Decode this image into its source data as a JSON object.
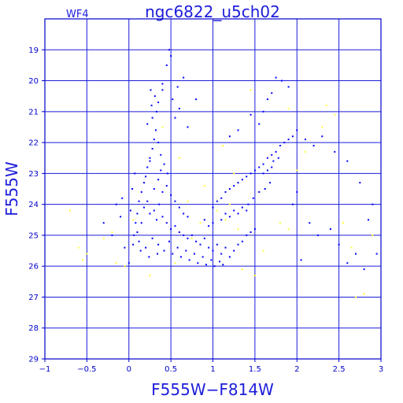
{
  "colors": {
    "axes": "#0000cc",
    "grid": "#1d1ddb",
    "series_main": "#0000ff",
    "series_minor": "#ffff33",
    "background": "#ffffff"
  },
  "chart_data": {
    "type": "scatter",
    "title": "ngc6822_u5ch02",
    "subtitle": "WF4",
    "xlabel": "F555W−F814W",
    "ylabel": "F555W",
    "xlim": [
      -1,
      3
    ],
    "ylim": [
      29,
      18
    ],
    "y_inverted": true,
    "grid": true,
    "x_ticks": [
      -1,
      -0.5,
      0,
      0.5,
      1,
      1.5,
      2,
      2.5,
      3
    ],
    "x_tick_labels": [
      "−1",
      "−0.5",
      "0",
      "0.5",
      "1",
      "1.5",
      "2",
      "2.5",
      "3"
    ],
    "y_ticks": [
      19,
      20,
      21,
      22,
      23,
      24,
      25,
      26,
      27,
      28,
      29
    ],
    "y_tick_labels": [
      "19",
      "20",
      "21",
      "22",
      "23",
      "24",
      "25",
      "26",
      "27",
      "28",
      "29"
    ],
    "series": [
      {
        "color": "#0000ff",
        "points": [
          [
            0.15,
            24.6
          ],
          [
            0.18,
            24.1
          ],
          [
            0.22,
            23.9
          ],
          [
            0.25,
            24.3
          ],
          [
            0.3,
            24.2
          ],
          [
            0.33,
            24.5
          ],
          [
            0.36,
            24.0
          ],
          [
            0.4,
            24.4
          ],
          [
            0.45,
            24.6
          ],
          [
            0.5,
            24.8
          ],
          [
            0.55,
            24.7
          ],
          [
            0.6,
            24.9
          ],
          [
            0.65,
            25.0
          ],
          [
            0.7,
            25.1
          ],
          [
            0.75,
            25.0
          ],
          [
            0.8,
            25.2
          ],
          [
            0.85,
            25.3
          ],
          [
            0.9,
            25.1
          ],
          [
            0.95,
            25.4
          ],
          [
            1.0,
            25.5
          ],
          [
            1.05,
            25.3
          ],
          [
            1.1,
            25.6
          ],
          [
            1.15,
            25.4
          ],
          [
            1.2,
            25.7
          ],
          [
            1.25,
            25.5
          ],
          [
            1.3,
            25.3
          ],
          [
            1.35,
            25.2
          ],
          [
            1.4,
            25.0
          ],
          [
            1.45,
            24.9
          ],
          [
            1.5,
            24.8
          ],
          [
            0.1,
            24.9
          ],
          [
            0.12,
            25.2
          ],
          [
            0.2,
            25.4
          ],
          [
            0.28,
            25.1
          ],
          [
            0.35,
            25.3
          ],
          [
            0.42,
            25.5
          ],
          [
            0.48,
            25.2
          ],
          [
            0.52,
            25.6
          ],
          [
            0.58,
            25.4
          ],
          [
            0.62,
            25.7
          ],
          [
            0.68,
            25.5
          ],
          [
            0.72,
            25.8
          ],
          [
            0.78,
            25.6
          ],
          [
            0.82,
            25.9
          ],
          [
            0.88,
            25.7
          ],
          [
            0.92,
            25.95
          ],
          [
            0.98,
            25.8
          ],
          [
            1.02,
            26.0
          ],
          [
            1.08,
            25.85
          ],
          [
            1.12,
            25.95
          ],
          [
            0.3,
            23.5
          ],
          [
            0.35,
            23.2
          ],
          [
            0.38,
            22.9
          ],
          [
            0.4,
            23.6
          ],
          [
            0.45,
            23.4
          ],
          [
            0.5,
            23.7
          ],
          [
            0.55,
            23.9
          ],
          [
            0.6,
            24.1
          ],
          [
            0.65,
            24.3
          ],
          [
            0.7,
            24.4
          ],
          [
            0.2,
            23.1
          ],
          [
            0.22,
            22.8
          ],
          [
            0.25,
            22.5
          ],
          [
            0.28,
            22.2
          ],
          [
            0.3,
            21.9
          ],
          [
            0.32,
            21.6
          ],
          [
            0.35,
            22.0
          ],
          [
            0.38,
            22.4
          ],
          [
            0.42,
            22.7
          ],
          [
            0.46,
            23.0
          ],
          [
            0.18,
            23.3
          ],
          [
            0.15,
            23.6
          ],
          [
            0.12,
            23.9
          ],
          [
            0.1,
            24.3
          ],
          [
            0.08,
            24.6
          ],
          [
            0.06,
            25.0
          ],
          [
            0.05,
            25.3
          ],
          [
            0.14,
            25.5
          ],
          [
            0.24,
            25.7
          ],
          [
            0.34,
            25.6
          ],
          [
            1.0,
            24.1
          ],
          [
            1.05,
            23.9
          ],
          [
            1.1,
            23.8
          ],
          [
            1.15,
            23.6
          ],
          [
            1.2,
            23.5
          ],
          [
            1.25,
            23.4
          ],
          [
            1.3,
            23.3
          ],
          [
            1.35,
            23.2
          ],
          [
            1.4,
            23.1
          ],
          [
            1.45,
            23.0
          ],
          [
            1.5,
            22.9
          ],
          [
            1.55,
            22.8
          ],
          [
            1.6,
            22.7
          ],
          [
            1.65,
            22.5
          ],
          [
            1.7,
            22.4
          ],
          [
            1.75,
            22.3
          ],
          [
            1.8,
            22.1
          ],
          [
            1.85,
            22.0
          ],
          [
            1.9,
            21.9
          ],
          [
            1.95,
            21.8
          ],
          [
            1.1,
            24.5
          ],
          [
            1.15,
            24.3
          ],
          [
            1.2,
            24.4
          ],
          [
            1.25,
            24.2
          ],
          [
            1.3,
            24.3
          ],
          [
            1.35,
            24.1
          ],
          [
            1.4,
            24.2
          ],
          [
            1.0,
            24.6
          ],
          [
            0.95,
            24.7
          ],
          [
            0.9,
            24.5
          ],
          [
            1.6,
            23.0
          ],
          [
            1.65,
            22.9
          ],
          [
            1.7,
            22.8
          ],
          [
            1.72,
            22.6
          ],
          [
            1.78,
            22.5
          ],
          [
            1.68,
            23.3
          ],
          [
            1.62,
            23.5
          ],
          [
            1.55,
            23.6
          ],
          [
            1.48,
            23.8
          ],
          [
            1.42,
            24.0
          ],
          [
            0.6,
            20.9
          ],
          [
            0.55,
            21.2
          ],
          [
            0.7,
            21.5
          ],
          [
            0.8,
            20.6
          ],
          [
            0.45,
            19.5
          ],
          [
            0.5,
            19.2
          ],
          [
            0.48,
            19.0
          ],
          [
            0.65,
            19.9
          ],
          [
            0.4,
            20.3
          ],
          [
            0.35,
            20.7
          ],
          [
            1.6,
            21.0
          ],
          [
            1.7,
            20.4
          ],
          [
            1.75,
            19.9
          ],
          [
            1.82,
            20.0
          ],
          [
            1.9,
            20.2
          ],
          [
            1.65,
            20.6
          ],
          [
            1.55,
            21.4
          ],
          [
            1.45,
            21.1
          ],
          [
            1.3,
            21.6
          ],
          [
            1.2,
            21.8
          ],
          [
            2.0,
            21.6
          ],
          [
            2.1,
            21.9
          ],
          [
            2.2,
            22.1
          ],
          [
            2.3,
            21.8
          ],
          [
            2.45,
            22.3
          ],
          [
            2.6,
            22.6
          ],
          [
            2.75,
            23.3
          ],
          [
            2.85,
            24.5
          ],
          [
            2.9,
            24.0
          ],
          [
            2.95,
            25.6
          ],
          [
            2.4,
            24.8
          ],
          [
            2.5,
            25.3
          ],
          [
            2.6,
            25.9
          ],
          [
            2.7,
            25.6
          ],
          [
            2.8,
            26.1
          ],
          [
            2.15,
            24.6
          ],
          [
            2.25,
            25.0
          ],
          [
            2.05,
            25.8
          ],
          [
            1.95,
            24.0
          ],
          [
            2.0,
            23.6
          ],
          [
            -0.3,
            24.6
          ],
          [
            -0.2,
            25.0
          ],
          [
            -0.1,
            24.4
          ],
          [
            -0.05,
            25.4
          ],
          [
            0.0,
            25.9
          ],
          [
            -0.15,
            24.0
          ],
          [
            0.02,
            24.2
          ],
          [
            -0.08,
            23.8
          ],
          [
            0.04,
            23.5
          ],
          [
            0.07,
            23.0
          ],
          [
            0.25,
            22.6
          ],
          [
            0.28,
            21.2
          ],
          [
            0.22,
            21.4
          ],
          [
            0.27,
            20.8
          ],
          [
            0.31,
            20.5
          ],
          [
            0.33,
            21.0
          ],
          [
            0.26,
            20.3
          ],
          [
            0.4,
            20.1
          ],
          [
            0.52,
            20.6
          ],
          [
            0.58,
            20.2
          ]
        ]
      },
      {
        "color": "#ffff33",
        "points": [
          [
            -0.7,
            24.2
          ],
          [
            -0.6,
            25.4
          ],
          [
            -0.55,
            25.8
          ],
          [
            -0.5,
            25.6
          ],
          [
            -0.3,
            25.1
          ],
          [
            -0.2,
            24.9
          ],
          [
            -0.15,
            25.9
          ],
          [
            -0.05,
            26.0
          ],
          [
            0.05,
            24.5
          ],
          [
            0.25,
            26.3
          ],
          [
            0.55,
            25.9
          ],
          [
            0.75,
            25.1
          ],
          [
            0.85,
            24.6
          ],
          [
            1.05,
            24.2
          ],
          [
            1.15,
            24.5
          ],
          [
            1.2,
            24.0
          ],
          [
            1.3,
            24.8
          ],
          [
            1.35,
            26.1
          ],
          [
            1.5,
            26.3
          ],
          [
            1.6,
            25.5
          ],
          [
            1.8,
            24.6
          ],
          [
            1.9,
            24.8
          ],
          [
            2.0,
            22.9
          ],
          [
            2.1,
            22.3
          ],
          [
            2.3,
            21.5
          ],
          [
            2.35,
            20.8
          ],
          [
            2.45,
            21.1
          ],
          [
            2.55,
            24.6
          ],
          [
            2.65,
            25.4
          ],
          [
            2.7,
            27.0
          ],
          [
            2.8,
            26.9
          ],
          [
            2.9,
            25.0
          ],
          [
            0.4,
            21.5
          ],
          [
            0.6,
            22.5
          ],
          [
            0.9,
            23.4
          ],
          [
            1.45,
            20.3
          ],
          [
            1.9,
            20.9
          ],
          [
            1.25,
            23.0
          ],
          [
            1.12,
            22.1
          ],
          [
            0.7,
            23.9
          ]
        ]
      }
    ]
  }
}
